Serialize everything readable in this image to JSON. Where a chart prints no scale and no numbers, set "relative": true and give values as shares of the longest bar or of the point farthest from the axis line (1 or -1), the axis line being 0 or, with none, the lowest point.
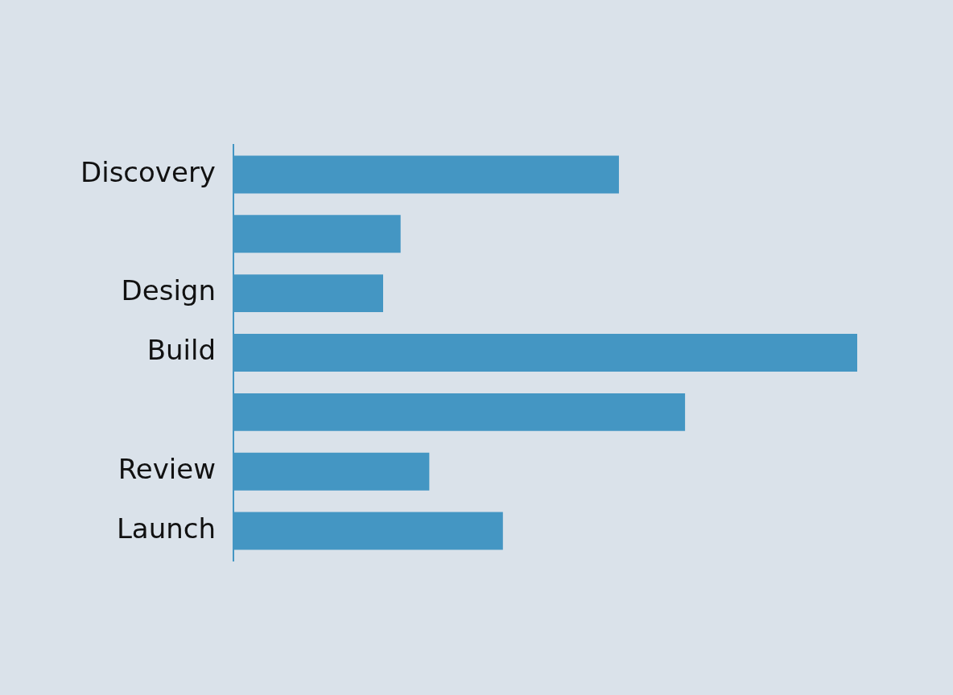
{
  "chart_data": {
    "type": "bar",
    "orientation": "horizontal",
    "relative": true,
    "categories": [
      "Discovery",
      null,
      "Design",
      "Build",
      null,
      "Review",
      "Launch"
    ],
    "values": [
      0.618,
      0.268,
      0.24,
      1,
      0.724,
      0.314,
      0.432
    ],
    "color": "#4496c3"
  }
}
